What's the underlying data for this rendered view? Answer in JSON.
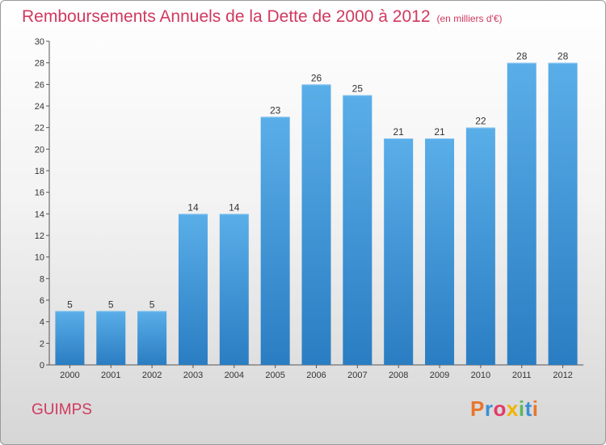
{
  "header": {
    "title": "Remboursements Annuels de la Dette de 2000 à 2012",
    "subtitle": "(en milliers d'€)"
  },
  "footer": {
    "commune": "GUIMPS",
    "brand": "Proxiti"
  },
  "colors": {
    "title": "#d1395f",
    "bar_top": "#5aaee8",
    "bar_bottom": "#2a7dc2",
    "brand_letters": [
      "#e8762c",
      "#3a8fd6",
      "#e33a6a",
      "#f0b400",
      "#5bb85b",
      "#3a8fd6",
      "#e8762c"
    ]
  },
  "chart_data": {
    "type": "bar",
    "categories": [
      "2000",
      "2001",
      "2002",
      "2003",
      "2004",
      "2005",
      "2006",
      "2007",
      "2008",
      "2009",
      "2010",
      "2011",
      "2012"
    ],
    "values": [
      5,
      5,
      5,
      14,
      14,
      23,
      26,
      25,
      21,
      21,
      22,
      28,
      28
    ],
    "title": "Remboursements Annuels de la Dette de 2000 à 2012",
    "subtitle": "(en milliers d'€)",
    "xlabel": "",
    "ylabel": "",
    "ylim": [
      0,
      30
    ],
    "yticks": [
      0,
      2,
      4,
      6,
      8,
      10,
      12,
      14,
      16,
      18,
      20,
      22,
      24,
      26,
      28,
      30
    ],
    "grid": false,
    "legend": "none"
  }
}
